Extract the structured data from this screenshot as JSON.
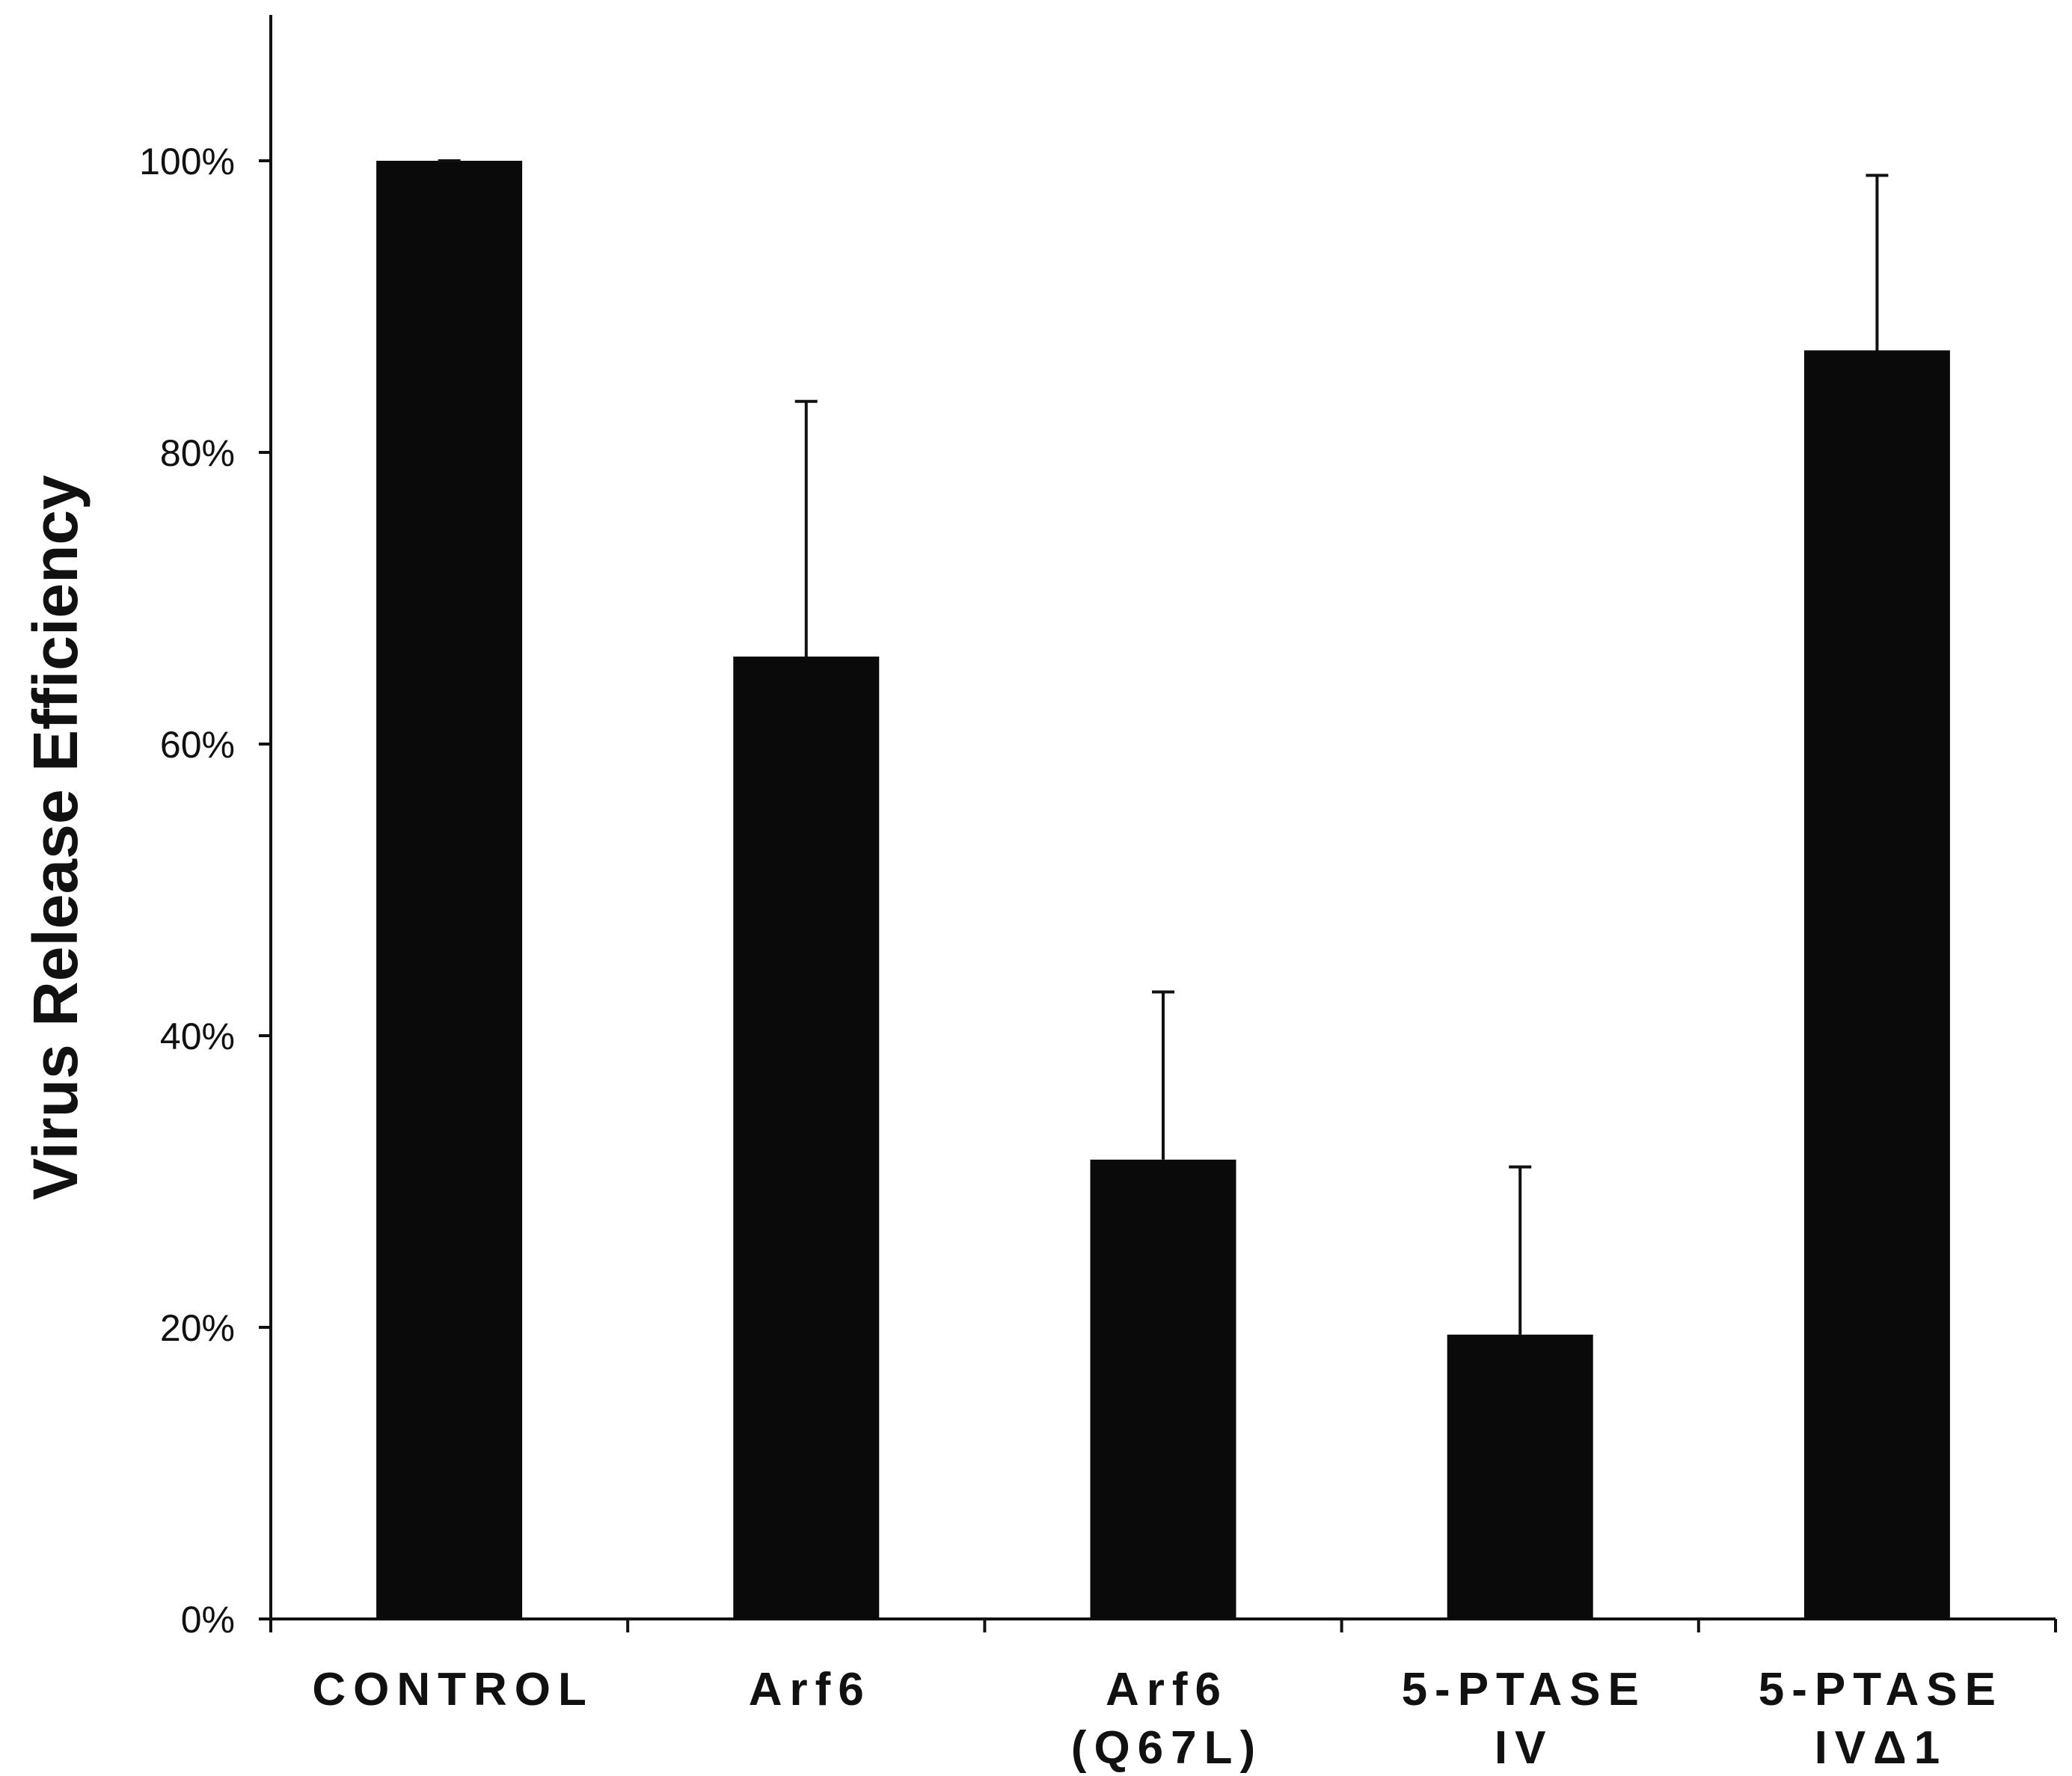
{
  "chart_data": {
    "type": "bar",
    "title": "",
    "xlabel": "",
    "ylabel": "Virus Release Efficiency",
    "ylim": [
      0,
      1.1
    ],
    "yticks": [
      0,
      0.2,
      0.4,
      0.6,
      0.8,
      1.0
    ],
    "ytick_labels": [
      "0%",
      "20%",
      "40%",
      "60%",
      "80%",
      "100%"
    ],
    "categories": [
      [
        "CONTROL"
      ],
      [
        "Arf6"
      ],
      [
        "Arf6",
        "(Q67L)"
      ],
      [
        "5-PTASE",
        "IV"
      ],
      [
        "5-PTASE",
        "IVΔ1"
      ]
    ],
    "values": [
      1.0,
      0.66,
      0.315,
      0.195,
      0.87
    ],
    "error_upper": [
      0.0,
      0.175,
      0.115,
      0.115,
      0.12
    ],
    "colors": {
      "bar": "#0a0a0a",
      "axis": "#111111",
      "background": "#ffffff"
    },
    "grid": false,
    "legend": "none"
  }
}
